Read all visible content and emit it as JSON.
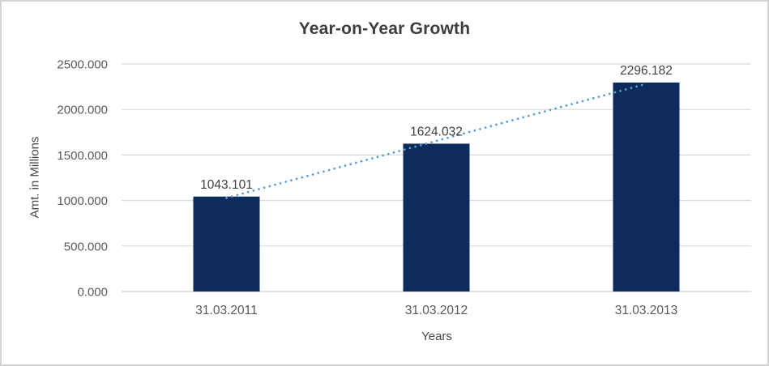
{
  "window": {
    "background": "#ffffff",
    "frame_border_color": "#d4d4d4"
  },
  "chart_data": {
    "type": "bar",
    "title": "Year-on-Year Growth",
    "xlabel": "Years",
    "ylabel": "Amt. in Millions",
    "categories": [
      "31.03.2011",
      "31.03.2012",
      "31.03.2013"
    ],
    "values": [
      1043.101,
      1624.032,
      2296.182
    ],
    "data_labels": [
      "1043.101",
      "1624.032",
      "2296.182"
    ],
    "ylim": [
      0,
      2500
    ],
    "ytick_step": 500,
    "ytick_labels": [
      "0.000",
      "500.000",
      "1000.000",
      "1500.000",
      "2000.000",
      "2500.000"
    ],
    "grid": true,
    "legend": "none",
    "bar_color": "#0d2b5b",
    "gridline_color": "#d9d9d9",
    "axis_line_color": "#cfcfcf",
    "tick_label_color": "#595959",
    "data_label_color": "#404040",
    "title_color": "#3d3d3d",
    "trendline": {
      "type": "linear",
      "style": "dotted",
      "color": "#5b9bd5"
    }
  }
}
